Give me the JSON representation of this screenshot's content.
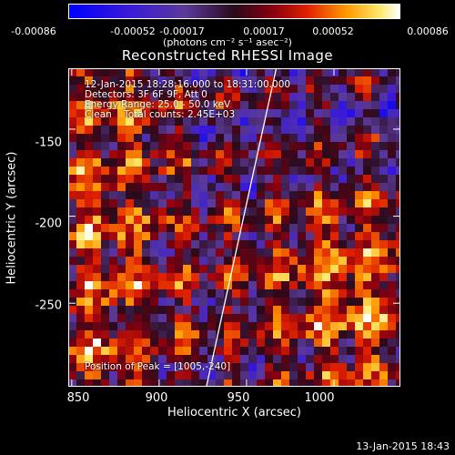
{
  "colorbar": {
    "ticks": [
      "-0.00086",
      "-0.00052",
      "-0.00017",
      "0.00017",
      "0.00052",
      "0.00086"
    ],
    "units": "(photons cm⁻² s⁻¹ asec⁻²)"
  },
  "title": "Reconstructed RHESSI Image",
  "annotations": {
    "time_range": "12-Jan-2015 18:28:16.000 to 18:31:00.000",
    "detectors": "Detectors: 3F 6F 9F, Att 0",
    "energy_range": "Energy Range: 25.0 - 50.0 keV",
    "clean_counts": "Clean    Total counts: 2.45E+03",
    "peak": "Position of Peak = [1005,-240]"
  },
  "axes": {
    "xlabel": "Heliocentric X (arcsec)",
    "ylabel": "Heliocentric Y (arcsec)",
    "xticks": [
      "850",
      "900",
      "950",
      "1000"
    ],
    "yticks": [
      "-150",
      "-200",
      "-250"
    ]
  },
  "timestamp": "13-Jan-2015 18:43",
  "chart_data": {
    "type": "heatmap",
    "title": "Reconstructed RHESSI Image",
    "xlabel": "Heliocentric X (arcsec)",
    "ylabel": "Heliocentric Y (arcsec)",
    "xlim": [
      848,
      1038
    ],
    "ylim": [
      -298,
      -115
    ],
    "x_ticks": [
      850,
      900,
      950,
      1000
    ],
    "y_ticks": [
      -150,
      -200,
      -250
    ],
    "colorbar_range": [
      -0.00086,
      0.00086
    ],
    "peak_position": [
      1005,
      -240
    ],
    "limb_line": [
      [
        927,
        -298
      ],
      [
        967,
        -115
      ]
    ],
    "colormap": "ct3-like (blue-purple-red-orange-yellow-white)"
  }
}
